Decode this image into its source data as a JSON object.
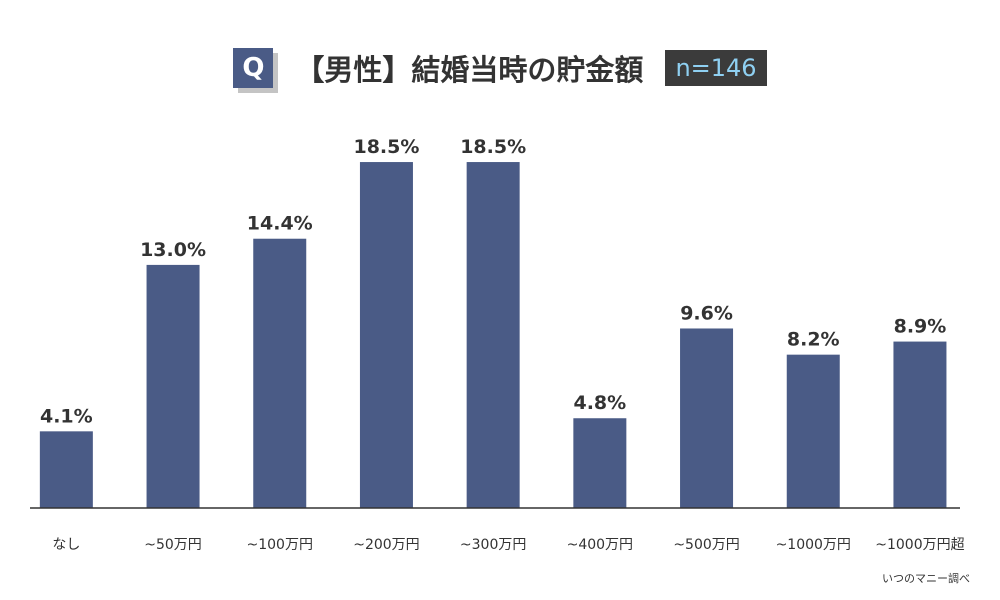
{
  "title": {
    "badge": "Q",
    "text": "【男性】結婚当時の貯金額",
    "sample": "n=146"
  },
  "chart_data": {
    "type": "bar",
    "categories": [
      "なし",
      "~50万円",
      "~100万円",
      "~200万円",
      "~300万円",
      "~400万円",
      "~500万円",
      "~1000万円",
      "~1000万円超"
    ],
    "values": [
      4.1,
      13.0,
      14.4,
      18.5,
      18.5,
      4.8,
      9.6,
      8.2,
      8.9
    ],
    "labels": [
      "4.1%",
      "13.0%",
      "14.4%",
      "18.5%",
      "18.5%",
      "4.8%",
      "9.6%",
      "8.2%",
      "8.9%"
    ],
    "unit": "%",
    "ylim": [
      0,
      20
    ],
    "grid": false,
    "bar_color": "#4a5b86"
  },
  "source": "いつのマニー調べ"
}
